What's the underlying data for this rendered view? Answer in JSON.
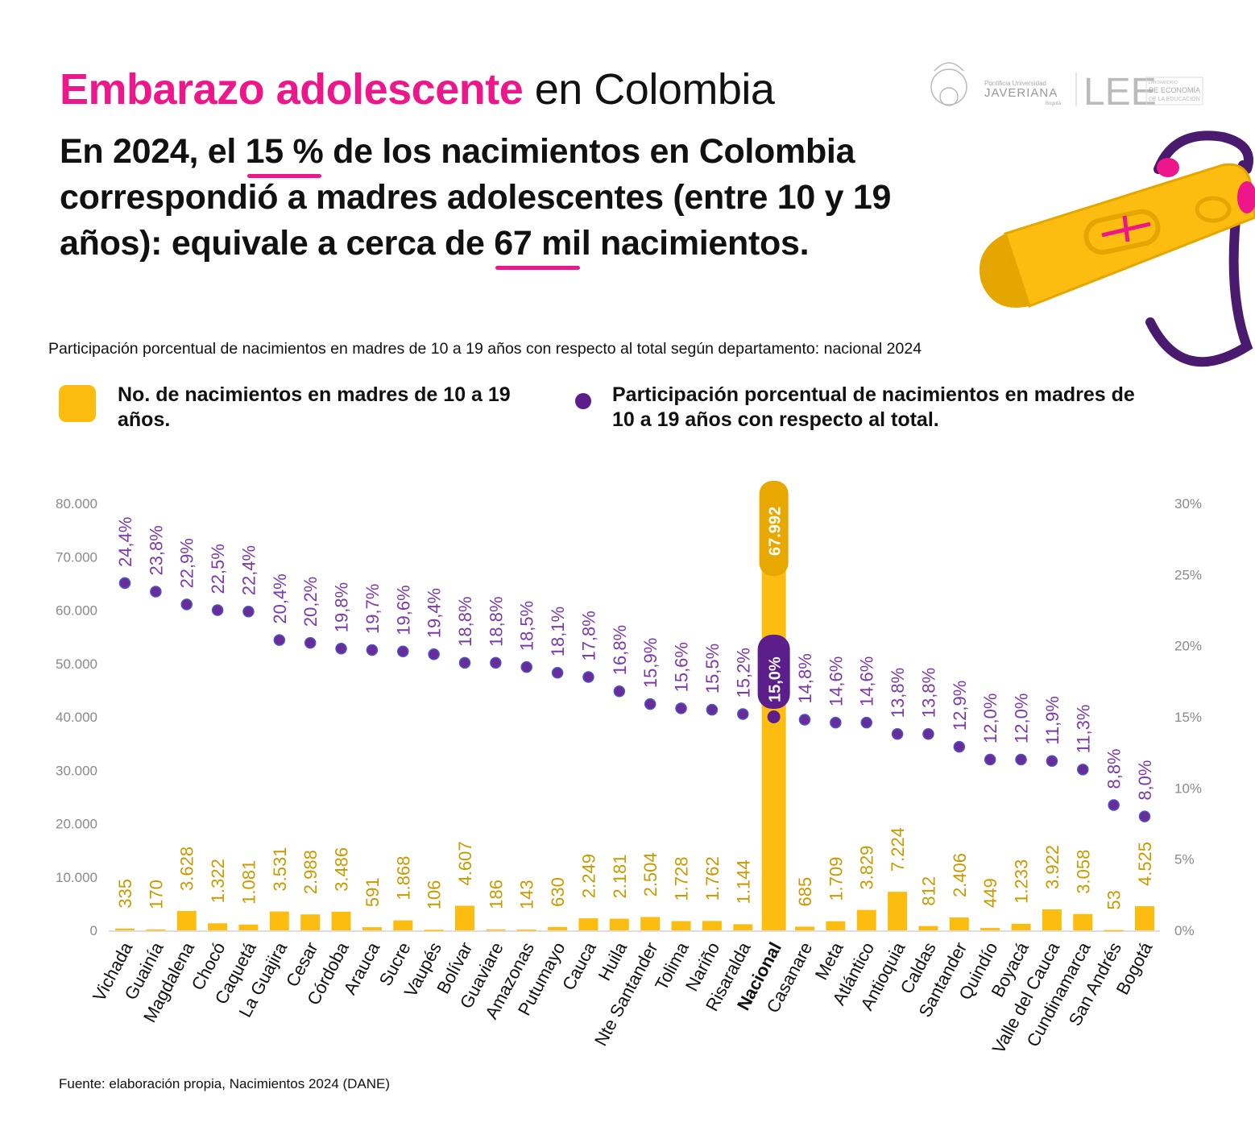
{
  "header": {
    "title_highlight": "Embarazo adolescente",
    "title_rest": " en Colombia",
    "headline": {
      "part1": "En 2024, el ",
      "pct": "15 %",
      "part2": " de los nacimientos en Colombia correspondió a madres adolescentes (entre 10 y 19 años): equivale a cerca de ",
      "num": "67 mi",
      "part3": "l nacimientos."
    },
    "logos": {
      "university_small": "Pontificia Universidad",
      "university": "JAVERIANA",
      "city": "Bogotá",
      "lab": "LEE",
      "lab_line1": "LABORATORIO",
      "lab_line2": "DE ECONOMÍA",
      "lab_line3": "DE LA EDUCACIÓN"
    }
  },
  "chart_subtitle": "Participación porcentual de nacimientos en madres de 10 a 19 años con respecto al total según departamento: nacional 2024",
  "legend": {
    "bars": "No. de nacimientos en madres de 10 a 19 años.",
    "dots": "Participación porcentual de nacimientos en madres de 10 a 19 años con respecto al total."
  },
  "source": "Fuente: elaboración propia, Nacimientos 2024 (DANE)",
  "colors": {
    "accent": "#ee168b",
    "bars": "#fdbd10",
    "bar_labels": "#c99a00",
    "dots": "#6a2c98",
    "highlight_purple": "#5b1e8a"
  },
  "chart_data": {
    "type": "bar+scatter",
    "title": "Participación porcentual de nacimientos en madres de 10 a 19 años con respecto al total según departamento: nacional 2024",
    "highlight_category": "Nacional",
    "categories": [
      "Vichada",
      "Guainía",
      "Magdalena",
      "Chocó",
      "Caquetá",
      "La Guajira",
      "Cesar",
      "Córdoba",
      "Arauca",
      "Sucre",
      "Vaupés",
      "Bolívar",
      "Guaviare",
      "Amazonas",
      "Putumayo",
      "Cauca",
      "Huila",
      "Nte Santander",
      "Tolima",
      "Nariño",
      "Risaralda",
      "Nacional",
      "Casanare",
      "Meta",
      "Atlántico",
      "Antioquia",
      "Caldas",
      "Santander",
      "Quindío",
      "Boyacá",
      "Valle del Cauca",
      "Cundinamarca",
      "San Andrés",
      "Bogotá"
    ],
    "series": [
      {
        "name": "No. de nacimientos en madres de 10 a 19 años.",
        "type": "bar",
        "axis": "left",
        "values": [
          335,
          170,
          3628,
          1322,
          1081,
          3531,
          2988,
          3486,
          591,
          1868,
          106,
          4607,
          186,
          143,
          630,
          2249,
          2181,
          2504,
          1728,
          1762,
          1144,
          67992,
          685,
          1709,
          3829,
          7224,
          812,
          2406,
          449,
          1233,
          3922,
          3058,
          53,
          4525
        ],
        "labels": [
          "335",
          "170",
          "3.628",
          "1.322",
          "1.081",
          "3.531",
          "2.988",
          "3.486",
          "591",
          "1.868",
          "106",
          "4.607",
          "186",
          "143",
          "630",
          "2.249",
          "2.181",
          "2.504",
          "1.728",
          "1.762",
          "1.144",
          "67.992",
          "685",
          "1.709",
          "3.829",
          "7.224",
          "812",
          "2.406",
          "449",
          "1.233",
          "3.922",
          "3.058",
          "53",
          "4.525"
        ]
      },
      {
        "name": "Participación porcentual de nacimientos en madres de 10 a 19 años con respecto al total.",
        "type": "scatter",
        "axis": "right",
        "values": [
          24.4,
          23.8,
          22.9,
          22.5,
          22.4,
          20.4,
          20.2,
          19.8,
          19.7,
          19.6,
          19.4,
          18.8,
          18.8,
          18.5,
          18.1,
          17.8,
          16.8,
          15.9,
          15.6,
          15.5,
          15.2,
          15.0,
          14.8,
          14.6,
          14.6,
          13.8,
          13.8,
          12.9,
          12.0,
          12.0,
          11.9,
          11.3,
          8.8,
          8.0
        ],
        "labels": [
          "24,4%",
          "23,8%",
          "22,9%",
          "22,5%",
          "22,4%",
          "20,4%",
          "20,2%",
          "19,8%",
          "19,7%",
          "19,6%",
          "19,4%",
          "18,8%",
          "18,8%",
          "18,5%",
          "18,1%",
          "17,8%",
          "16,8%",
          "15,9%",
          "15,6%",
          "15,5%",
          "15,2%",
          "15,0%",
          "14,8%",
          "14,6%",
          "14,6%",
          "13,8%",
          "13,8%",
          "12,9%",
          "12,0%",
          "12,0%",
          "11,9%",
          "11,3%",
          "8,8%",
          "8,0%"
        ]
      }
    ],
    "ylim_left": [
      0,
      80000
    ],
    "yticks_left": [
      "0",
      "10.000",
      "20.000",
      "30.000",
      "40.000",
      "50.000",
      "60.000",
      "70.000",
      "80.000"
    ],
    "ylim_right": [
      0,
      30
    ],
    "yticks_right": [
      "0%",
      "5%",
      "10%",
      "15%",
      "20%",
      "25%",
      "30%"
    ],
    "grid": false
  }
}
